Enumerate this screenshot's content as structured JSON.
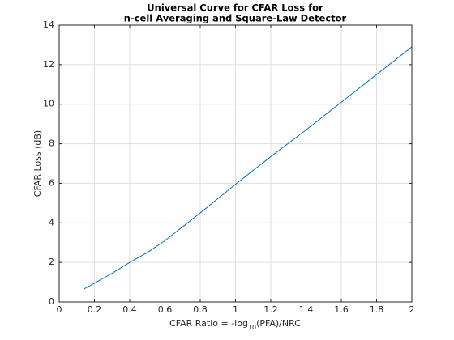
{
  "chart_data": {
    "type": "line",
    "title": [
      "Universal Curve for CFAR Loss for",
      "n-cell Averaging and Square-Law Detector"
    ],
    "xlabel": [
      "CFAR Ratio = -log",
      "10",
      "(PFA)/NRC"
    ],
    "ylabel": "CFAR Loss (dB)",
    "x": [
      0.14,
      0.2,
      0.3,
      0.4,
      0.5,
      0.6,
      0.8,
      1.0,
      1.2,
      1.4,
      1.6,
      1.8,
      2.0
    ],
    "series": [
      {
        "color": "#0072bd",
        "values": [
          0.65,
          0.95,
          1.45,
          2.0,
          2.5,
          3.1,
          4.5,
          5.95,
          7.35,
          8.7,
          10.1,
          11.5,
          12.9
        ]
      }
    ],
    "xlim": [
      0,
      2
    ],
    "ylim": [
      0,
      14
    ],
    "xticks": [
      0,
      0.2,
      0.4,
      0.6,
      0.8,
      1,
      1.2,
      1.4,
      1.6,
      1.8,
      2
    ],
    "yticks": [
      0,
      2,
      4,
      6,
      8,
      10,
      12,
      14
    ],
    "grid": true
  }
}
